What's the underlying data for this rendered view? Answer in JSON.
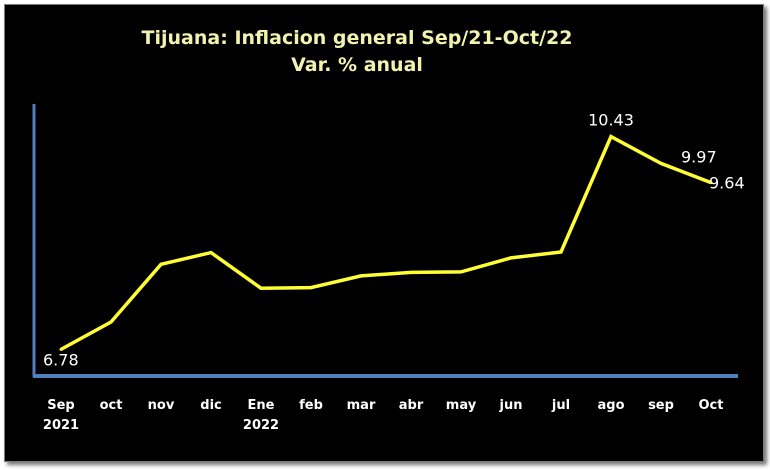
{
  "chart_data": {
    "type": "line",
    "title": "Tijuana: Inflacion general Sep/21-Oct/22",
    "subtitle": "Var. % anual",
    "categories": [
      [
        "Sep",
        "2021"
      ],
      [
        "oct",
        ""
      ],
      [
        "nov",
        ""
      ],
      [
        "dic",
        ""
      ],
      [
        "Ene",
        "2022"
      ],
      [
        "feb",
        ""
      ],
      [
        "mar",
        ""
      ],
      [
        "abr",
        ""
      ],
      [
        "may",
        ""
      ],
      [
        "jun",
        ""
      ],
      [
        "jul",
        ""
      ],
      [
        "ago",
        ""
      ],
      [
        "sep",
        ""
      ],
      [
        "Oct",
        ""
      ]
    ],
    "series": [
      {
        "values": [
          6.78,
          7.25,
          8.24,
          8.44,
          7.83,
          7.84,
          8.04,
          8.1,
          8.11,
          8.35,
          8.45,
          10.43,
          9.97,
          9.64
        ],
        "color": "#ffff33"
      }
    ],
    "data_labels": [
      {
        "index": 0,
        "text": "6.78"
      },
      {
        "index": 11,
        "text": "10.43"
      },
      {
        "index": 12,
        "text": "9.97"
      },
      {
        "index": 13,
        "text": "9.64"
      }
    ],
    "ylim": [
      6.65,
      10.92
    ],
    "y_axis_ticks_visible": false,
    "grid": false,
    "axis_color": "#4f7fbf",
    "background": "#000000",
    "title_color": "#f3f3b0"
  }
}
